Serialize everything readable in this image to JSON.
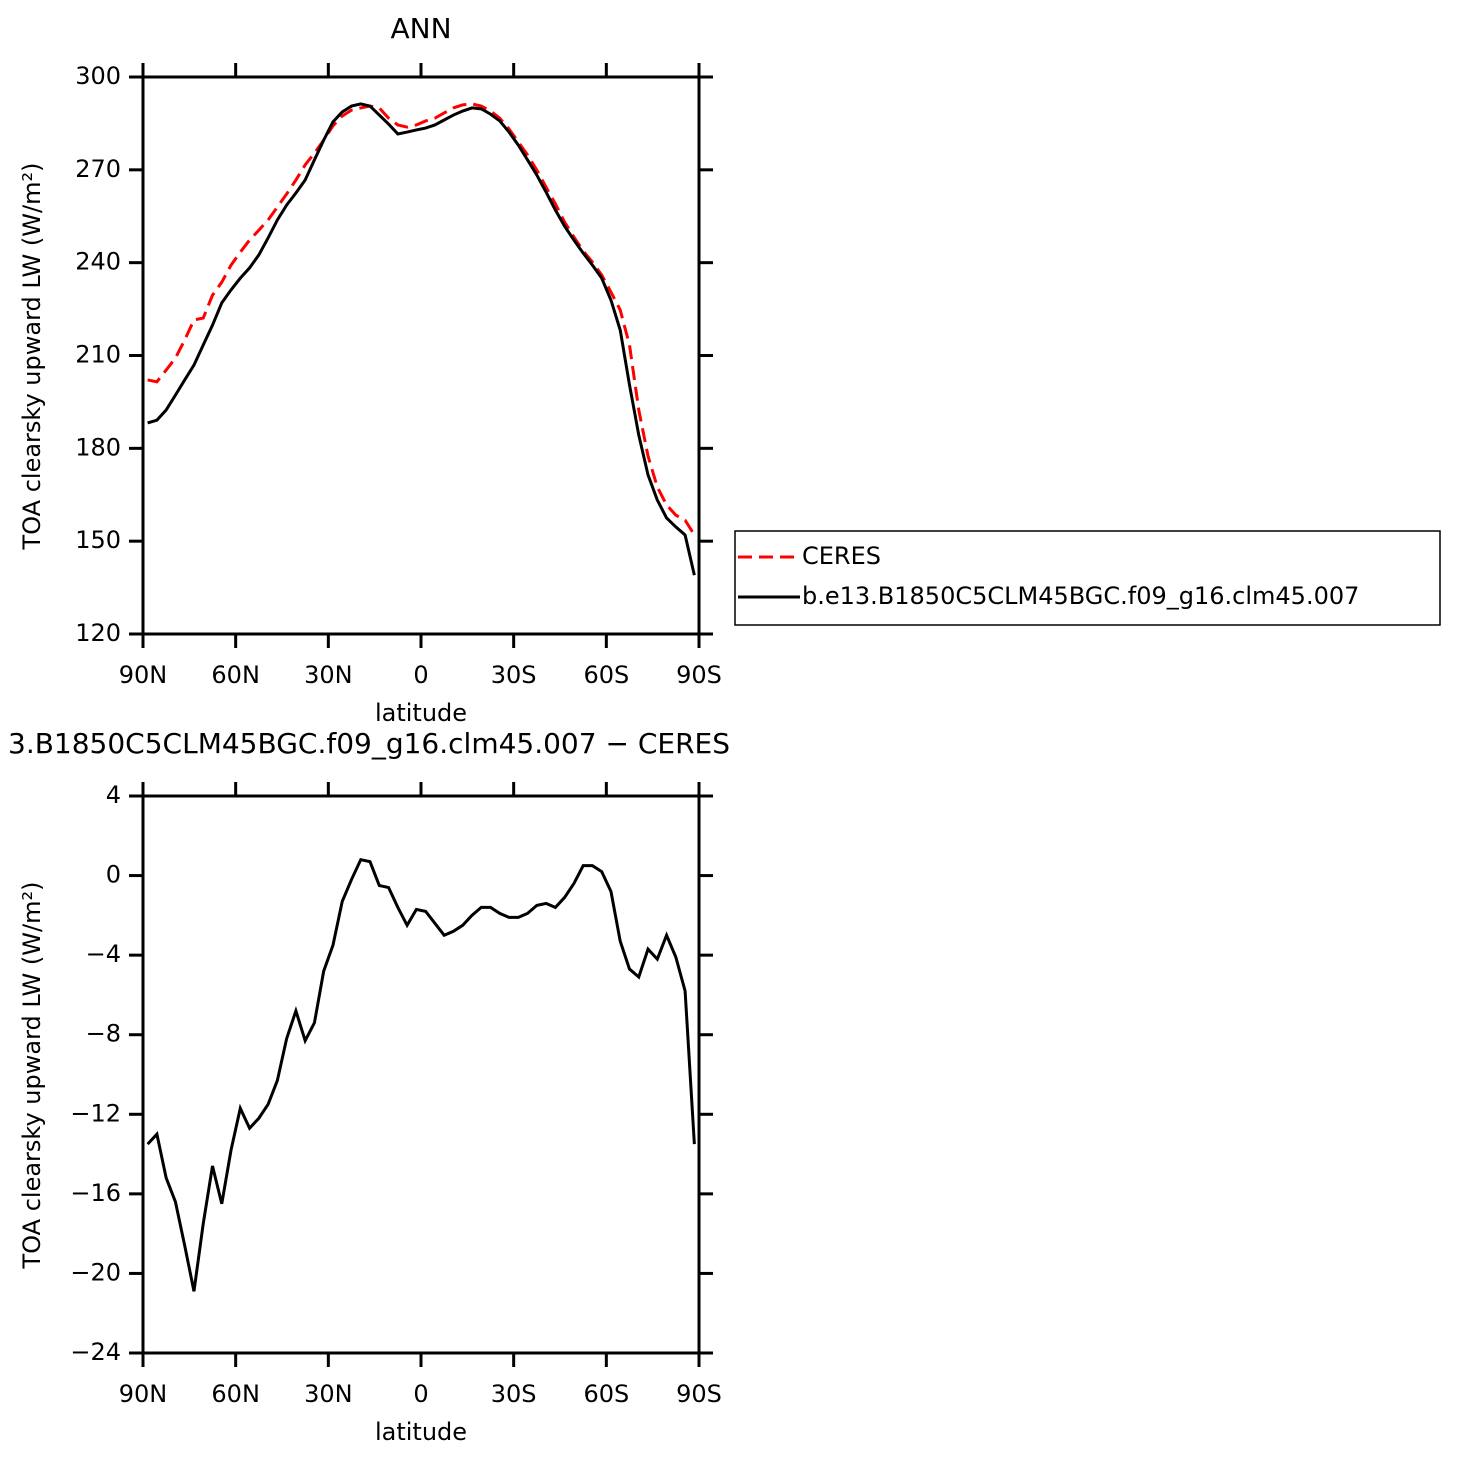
{
  "chart_data": [
    {
      "type": "line",
      "title": "ANN",
      "xlabel": "latitude",
      "ylabel": "TOA clearsky upward LW (W/m²)",
      "x": [
        88.5,
        85.5,
        82.5,
        79.5,
        76.5,
        73.5,
        70.5,
        67.5,
        64.5,
        61.5,
        58.5,
        55.5,
        52.5,
        49.5,
        46.5,
        43.5,
        40.5,
        37.5,
        34.5,
        31.5,
        28.5,
        25.5,
        22.5,
        19.5,
        16.5,
        13.5,
        10.5,
        7.5,
        4.5,
        1.5,
        -1.5,
        -4.5,
        -7.5,
        -10.5,
        -13.5,
        -16.5,
        -19.5,
        -22.5,
        -25.5,
        -28.5,
        -31.5,
        -34.5,
        -37.5,
        -40.5,
        -43.5,
        -46.5,
        -49.5,
        -52.5,
        -55.5,
        -58.5,
        -61.5,
        -64.5,
        -67.5,
        -70.5,
        -73.5,
        -76.5,
        -79.5,
        -82.5,
        -85.5,
        -88.5
      ],
      "xlim": [
        90,
        -90
      ],
      "xticks": [
        {
          "value": 90,
          "label": "90N"
        },
        {
          "value": 60,
          "label": "60N"
        },
        {
          "value": 30,
          "label": "30N"
        },
        0,
        {
          "value": -30,
          "label": "30S"
        },
        {
          "value": -60,
          "label": "60S"
        },
        {
          "value": -90,
          "label": "90S"
        }
      ],
      "ylim": [
        120,
        300
      ],
      "yticks": [
        120,
        150,
        180,
        210,
        240,
        270,
        300
      ],
      "legend": "right",
      "series": [
        {
          "name": "CERES",
          "color": "#ff0000",
          "linestyle": "dashed",
          "values": [
            202.1,
            201.5,
            205.3,
            209.2,
            215,
            221.5,
            222.1,
            229.5,
            233.7,
            239.2,
            243.4,
            247.3,
            250.5,
            253.8,
            258,
            262.2,
            266.7,
            271.6,
            275.4,
            279.6,
            284.2,
            287.4,
            289.3,
            290,
            290.6,
            290,
            286.7,
            284.5,
            283.8,
            284.5,
            285.8,
            286.7,
            288.4,
            290,
            291,
            291.3,
            290.6,
            289,
            286.7,
            283.2,
            279,
            274.8,
            269.9,
            264.4,
            259,
            253.1,
            248.3,
            243.8,
            240.2,
            236,
            230.5,
            224.7,
            213.4,
            192.4,
            177.5,
            167.5,
            161.7,
            158.4,
            156.8,
            152
          ]
        },
        {
          "name": "b.e13.B1850C5CLM45BGC.f09_g16.clm45.007",
          "color": "#000000",
          "linestyle": "solid",
          "values": [
            188.2,
            189.1,
            192.4,
            197.2,
            202.1,
            206.9,
            213.4,
            219.8,
            227,
            231.2,
            235,
            238.3,
            242.5,
            248,
            253.8,
            258.6,
            262.5,
            266.7,
            273.2,
            279.6,
            285.5,
            288.7,
            290.6,
            291.3,
            290.6,
            287.7,
            284.8,
            281.6,
            282.2,
            282.9,
            283.5,
            284.5,
            286.1,
            287.7,
            289,
            290,
            289.7,
            288,
            285.8,
            282.2,
            278,
            273.2,
            268.3,
            262.8,
            257,
            251.8,
            247.3,
            243.1,
            239.2,
            235,
            227.9,
            218.2,
            200.5,
            184.3,
            171.4,
            163.3,
            157.5,
            154.6,
            152,
            139
          ]
        }
      ]
    },
    {
      "type": "line",
      "title": "3.B1850C5CLM45BGC.f09_g16.clm45.007 − CERES",
      "xlabel": "latitude",
      "ylabel": "TOA clearsky upward LW (W/m²)",
      "x": [
        88.5,
        85.5,
        82.5,
        79.5,
        76.5,
        73.5,
        70.5,
        67.5,
        64.5,
        61.5,
        58.5,
        55.5,
        52.5,
        49.5,
        46.5,
        43.5,
        40.5,
        37.5,
        34.5,
        31.5,
        28.5,
        25.5,
        22.5,
        19.5,
        16.5,
        13.5,
        10.5,
        7.5,
        4.5,
        1.5,
        -1.5,
        -4.5,
        -7.5,
        -10.5,
        -13.5,
        -16.5,
        -19.5,
        -22.5,
        -25.5,
        -28.5,
        -31.5,
        -34.5,
        -37.5,
        -40.5,
        -43.5,
        -46.5,
        -49.5,
        -52.5,
        -55.5,
        -58.5,
        -61.5,
        -64.5,
        -67.5,
        -70.5,
        -73.5,
        -76.5,
        -79.5,
        -82.5,
        -85.5,
        -88.5
      ],
      "xlim": [
        90,
        -90
      ],
      "xticks": [
        {
          "value": 90,
          "label": "90N"
        },
        {
          "value": 60,
          "label": "60N"
        },
        {
          "value": 30,
          "label": "30N"
        },
        0,
        {
          "value": -30,
          "label": "30S"
        },
        {
          "value": -60,
          "label": "60S"
        },
        {
          "value": -90,
          "label": "90S"
        }
      ],
      "ylim": [
        -24,
        4
      ],
      "yticks": [
        {
          "value": -24,
          "label": "−24"
        },
        {
          "value": -20,
          "label": "−20"
        },
        {
          "value": -16,
          "label": "−16"
        },
        {
          "value": -12,
          "label": "−12"
        },
        {
          "value": -8,
          "label": "−8"
        },
        {
          "value": -4,
          "label": "−4"
        },
        0,
        4
      ],
      "color": "#000000",
      "values": [
        -13.5,
        -13.0,
        -15.2,
        -16.4,
        -18.6,
        -20.9,
        -17.5,
        -14.6,
        -16.5,
        -13.8,
        -11.7,
        -12.7,
        -12.2,
        -11.5,
        -10.3,
        -8.2,
        -6.8,
        -8.3,
        -7.4,
        -4.8,
        -3.5,
        -1.3,
        -0.2,
        0.8,
        0.7,
        -0.5,
        -0.6,
        -1.6,
        -2.5,
        -1.7,
        -1.8,
        -2.4,
        -3.0,
        -2.8,
        -2.5,
        -2.0,
        -1.6,
        -1.6,
        -1.9,
        -2.1,
        -2.1,
        -1.9,
        -1.5,
        -1.4,
        -1.6,
        -1.1,
        -0.4,
        0.5,
        0.5,
        0.2,
        -0.8,
        -3.3,
        -4.7,
        -5.1,
        -3.7,
        -4.2,
        -3.0,
        -4.1,
        -5.8,
        -13.5
      ]
    }
  ]
}
